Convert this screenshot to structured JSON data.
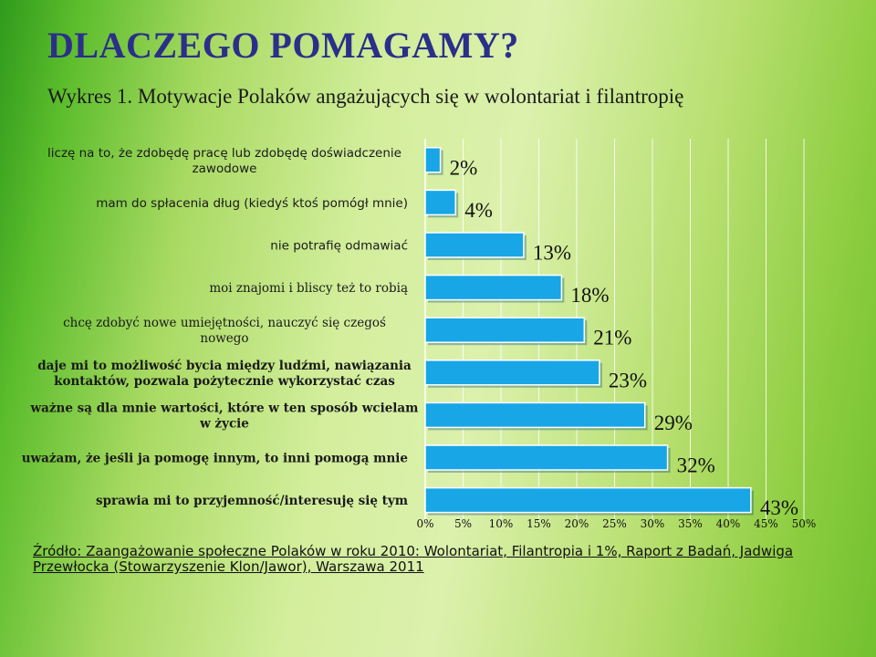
{
  "slide_title": "DLACZEGO POMAGAMY?",
  "chart_data": {
    "type": "bar",
    "orientation": "horizontal",
    "title": "Wykres 1. Motywacje Polaków angażujących się w wolontariat i filantropię",
    "categories": [
      "liczę na to, że zdobędę pracę lub zdobędę doświadczenie zawodowe",
      "mam do spłacenia dług (kiedyś ktoś pomógł mnie)",
      "nie potrafię odmawiać",
      "moi znajomi i bliscy też to robią",
      "chcę zdobyć nowe umiejętności, nauczyć się czegoś nowego",
      "daje mi to możliwość bycia między ludźmi, nawiązania kontaktów, pozwala pożytecznie wykorzystać czas",
      "ważne są dla mnie wartości, które w ten sposób wcielam w życie",
      "uważam, że jeśli ja pomogę innym, to inni pomogą mnie",
      "sprawia mi to przyjemność/interesuję się tym"
    ],
    "category_lines": [
      [
        "liczę na to, że zdobędę pracę lub zdobędę doświadczenie",
        "zawodowe"
      ],
      [
        "mam do spłacenia dług (kiedyś ktoś pomógł mnie)"
      ],
      [
        "nie potrafię odmawiać"
      ],
      [
        "moi znajomi i bliscy też to robią"
      ],
      [
        "chcę zdobyć nowe umiejętności, nauczyć się czegoś",
        "nowego"
      ],
      [
        "daje mi to możliwość bycia między ludźmi, nawiązania",
        "kontaktów, pozwala pożytecznie wykorzystać czas"
      ],
      [
        "ważne są dla mnie wartości, które w ten sposób wcielam",
        "w życie"
      ],
      [
        "uważam, że jeśli ja pomogę innym, to inni pomogą mnie"
      ],
      [
        "sprawia mi to przyjemność/interesuję się tym"
      ]
    ],
    "values": [
      2,
      4,
      13,
      18,
      21,
      23,
      29,
      32,
      43
    ],
    "value_labels": [
      "2%",
      "4%",
      "13%",
      "18%",
      "21%",
      "23%",
      "29%",
      "32%",
      "43%"
    ],
    "xlim": [
      0,
      50
    ],
    "x_ticks": [
      "0%",
      "5%",
      "10%",
      "15%",
      "20%",
      "25%",
      "30%",
      "35%",
      "40%",
      "45%",
      "50%"
    ],
    "grid": true,
    "bar_color": "#18a6e6"
  },
  "source": "Źródło: Zaangażowanie społeczne Polaków w roku 2010: Wolontariat, Filantropia i 1%, Raport z Badań, Jadwiga Przewłocka (Stowarzyszenie Klon/Jawor), Warszawa 2011"
}
